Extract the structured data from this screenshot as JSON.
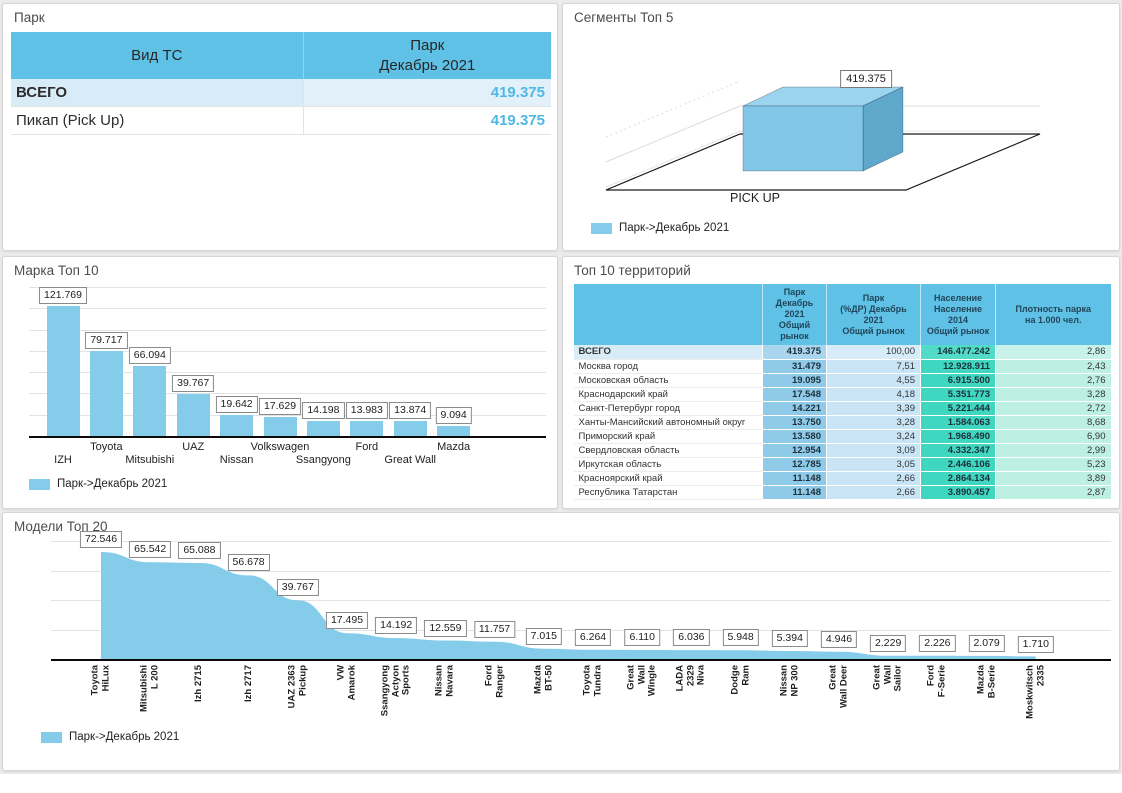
{
  "colors": {
    "accent_blue": "#85CCEA",
    "table_header_blue": "#5FC1E6",
    "park_value_blue": "#4FB8E3",
    "cell_blue_medium": "#8FCBE9",
    "cell_blue_light": "#C9E5F5",
    "cell_teal": "#3FD7C0",
    "cell_mint": "#BDEFE3",
    "total_row_bg": "#D8ECF8",
    "bar3d_front": "#82C7E7",
    "bar3d_top": "#9AD4EE",
    "bar3d_side": "#5FA8CB"
  },
  "park_panel": {
    "title": "Парк",
    "col1_header": "Вид ТС",
    "col2_header": "Парк\nДекабрь 2021",
    "rows": [
      {
        "name": "ВСЕГО",
        "value": "419.375"
      },
      {
        "name": "Пикап (Pick Up)",
        "value": "419.375"
      }
    ]
  },
  "segments_panel": {
    "title": "Сегменты Топ 5",
    "value_label": "419.375",
    "category": "PICK UP",
    "legend": "Парк->Декабрь 2021"
  },
  "brands_panel": {
    "title": "Марка Топ 10",
    "legend": "Парк->Декабрь 2021"
  },
  "territories_panel": {
    "title": "Топ 10 территорий",
    "columns": [
      "",
      "Парк\nДекабрь 2021\nОбщий рынок",
      "Парк\n(%ДР) Декабрь 2021\nОбщий рынок",
      "Население\nНаселение 2014\nОбщий рынок",
      "Плотность парка\nна 1.000 чел."
    ],
    "rows": [
      {
        "name": "ВСЕГО",
        "park": "419.375",
        "share": "100,00",
        "population": "146.477.242",
        "density": "2,86",
        "total": true
      },
      {
        "name": "Москва город",
        "park": "31.479",
        "share": "7,51",
        "population": "12.928.911",
        "density": "2,43"
      },
      {
        "name": "Московская область",
        "park": "19.095",
        "share": "4,55",
        "population": "6.915.500",
        "density": "2,76"
      },
      {
        "name": "Краснодарский край",
        "park": "17.548",
        "share": "4,18",
        "population": "5.351.773",
        "density": "3,28"
      },
      {
        "name": "Санкт-Петербург город",
        "park": "14.221",
        "share": "3,39",
        "population": "5.221.444",
        "density": "2,72"
      },
      {
        "name": "Ханты-Мансийский автономный округ",
        "park": "13.750",
        "share": "3,28",
        "population": "1.584.063",
        "density": "8,68"
      },
      {
        "name": "Приморский край",
        "park": "13.580",
        "share": "3,24",
        "population": "1.968.490",
        "density": "6,90"
      },
      {
        "name": "Свердловская область",
        "park": "12.954",
        "share": "3,09",
        "population": "4.332.347",
        "density": "2,99"
      },
      {
        "name": "Иркутская область",
        "park": "12.785",
        "share": "3,05",
        "population": "2.446.106",
        "density": "5,23"
      },
      {
        "name": "Красноярский край",
        "park": "11.148",
        "share": "2,66",
        "population": "2.864.134",
        "density": "3,89"
      },
      {
        "name": "Республика Татарстан",
        "park": "11.148",
        "share": "2,66",
        "population": "3.890.457",
        "density": "2,87"
      }
    ]
  },
  "models_panel": {
    "title": "Модели Топ 20",
    "legend": "Парк->Декабрь 2021"
  },
  "chart_data": [
    {
      "id": "segments_top5",
      "type": "bar",
      "style": "3d",
      "title": "Сегменты Топ 5",
      "categories": [
        "PICK UP"
      ],
      "values": [
        419375
      ],
      "labels": [
        "419.375"
      ],
      "series_name": "Парк->Декабрь 2021",
      "legend_position": "bottom-left"
    },
    {
      "id": "brands_top10",
      "type": "bar",
      "title": "Марка Топ 10",
      "categories": [
        "IZH",
        "Toyota",
        "Mitsubishi",
        "UAZ",
        "Nissan",
        "Volkswagen",
        "Ssangyong",
        "Ford",
        "Great Wall",
        "Mazda"
      ],
      "values": [
        121769,
        79717,
        66094,
        39767,
        19642,
        17629,
        14198,
        13983,
        13874,
        9094
      ],
      "labels": [
        "121.769",
        "79.717",
        "66.094",
        "39.767",
        "19.642",
        "17.629",
        "14.198",
        "13.983",
        "13.874",
        "9.094"
      ],
      "series_name": "Парк->Декабрь 2021",
      "ylim": [
        0,
        140000
      ],
      "grid": true,
      "legend_position": "bottom-left"
    },
    {
      "id": "models_top20",
      "type": "area",
      "title": "Модели Топ 20",
      "categories": [
        "Toyota\nHiLux",
        "Mitsubishi\nL 200",
        "Izh 2715",
        "Izh 2717",
        "UAZ 2363\nPickup",
        "VW\nAmarok",
        "Ssangyong\nActyon\nSports",
        "Nissan\nNavara",
        "Ford\nRanger",
        "Mazda\nBT-50",
        "Toyota\nTundra",
        "Great\nWall\nWingle",
        "LADA\n2329\nNiva",
        "Dodge\nRam",
        "Nissan\nNP 300",
        "Great\nWall Deer",
        "Great\nWall\nSailor",
        "Ford\nF-Serie",
        "Mazda\nB-Serie",
        "Moskwitsch\n2335"
      ],
      "values": [
        72546,
        65542,
        65088,
        56678,
        39767,
        17495,
        14192,
        12559,
        11757,
        7015,
        6264,
        6110,
        6036,
        5948,
        5394,
        4946,
        2229,
        2226,
        2079,
        1710
      ],
      "labels": [
        "72.546",
        "65.542",
        "65.088",
        "56.678",
        "39.767",
        "17.495",
        "14.192",
        "12.559",
        "11.757",
        "7.015",
        "6.264",
        "6.110",
        "6.036",
        "5.948",
        "5.394",
        "4.946",
        "2.229",
        "2.226",
        "2.079",
        "1.710"
      ],
      "series_name": "Парк->Декабрь 2021",
      "ylim": [
        0,
        80000
      ],
      "grid": true,
      "legend_position": "bottom-left"
    }
  ]
}
